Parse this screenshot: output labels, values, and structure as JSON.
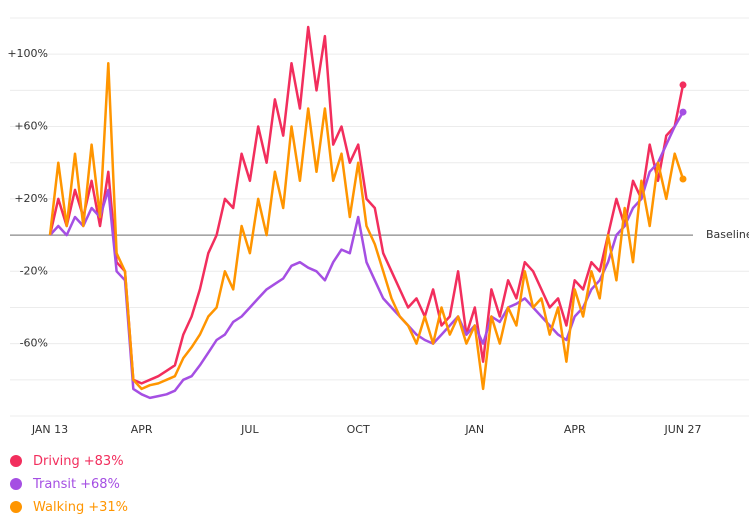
{
  "chart_data": {
    "type": "line",
    "categories": [
      "JAN 13",
      null,
      null,
      null,
      null,
      null,
      null,
      null,
      null,
      null,
      null,
      "APR",
      null,
      null,
      null,
      null,
      null,
      null,
      null,
      null,
      null,
      null,
      null,
      null,
      "JUL",
      null,
      null,
      null,
      null,
      null,
      null,
      null,
      null,
      null,
      null,
      null,
      null,
      "OCT",
      null,
      null,
      null,
      null,
      null,
      null,
      null,
      null,
      null,
      null,
      null,
      null,
      null,
      "JAN",
      null,
      null,
      null,
      null,
      null,
      null,
      null,
      null,
      null,
      null,
      null,
      "APR",
      null,
      null,
      null,
      null,
      null,
      null,
      null,
      null,
      null,
      null,
      null,
      null,
      "JUN 27"
    ],
    "series": [
      {
        "name": "Driving",
        "end_label": "+83%",
        "color": "#f22e5d",
        "values": [
          0,
          20,
          5,
          25,
          10,
          30,
          5,
          35,
          -15,
          -20,
          -80,
          -82,
          -80,
          -78,
          -75,
          -72,
          -55,
          -45,
          -30,
          -10,
          0,
          20,
          15,
          45,
          30,
          60,
          40,
          75,
          55,
          95,
          70,
          115,
          80,
          110,
          50,
          60,
          40,
          50,
          20,
          15,
          -10,
          -20,
          -30,
          -40,
          -35,
          -45,
          -30,
          -50,
          -45,
          -20,
          -55,
          -40,
          -70,
          -30,
          -45,
          -25,
          -35,
          -15,
          -20,
          -30,
          -40,
          -35,
          -50,
          -25,
          -30,
          -15,
          -20,
          0,
          20,
          5,
          30,
          20,
          50,
          30,
          55,
          60,
          83
        ]
      },
      {
        "name": "Transit",
        "end_label": "+68%",
        "color": "#a54fe3",
        "values": [
          0,
          5,
          0,
          10,
          5,
          15,
          10,
          25,
          -20,
          -25,
          -85,
          -88,
          -90,
          -89,
          -88,
          -86,
          -80,
          -78,
          -72,
          -65,
          -58,
          -55,
          -48,
          -45,
          -40,
          -35,
          -30,
          -27,
          -24,
          -17,
          -15,
          -18,
          -20,
          -25,
          -15,
          -8,
          -10,
          10,
          -15,
          -25,
          -35,
          -40,
          -45,
          -50,
          -55,
          -58,
          -60,
          -55,
          -50,
          -45,
          -55,
          -50,
          -60,
          -45,
          -48,
          -40,
          -38,
          -35,
          -40,
          -45,
          -50,
          -55,
          -58,
          -45,
          -40,
          -30,
          -25,
          -15,
          0,
          5,
          15,
          20,
          35,
          40,
          50,
          60,
          68
        ]
      },
      {
        "name": "Walking",
        "end_label": "+31%",
        "color": "#ff9500",
        "values": [
          0,
          40,
          5,
          45,
          5,
          50,
          10,
          95,
          -10,
          -20,
          -80,
          -85,
          -83,
          -82,
          -80,
          -78,
          -68,
          -62,
          -55,
          -45,
          -40,
          -20,
          -30,
          5,
          -10,
          20,
          0,
          35,
          15,
          60,
          30,
          70,
          35,
          70,
          30,
          45,
          10,
          40,
          5,
          -5,
          -20,
          -35,
          -45,
          -50,
          -60,
          -45,
          -60,
          -40,
          -55,
          -45,
          -60,
          -50,
          -85,
          -45,
          -60,
          -40,
          -50,
          -20,
          -40,
          -35,
          -55,
          -40,
          -70,
          -30,
          -45,
          -20,
          -35,
          0,
          -25,
          15,
          -15,
          30,
          5,
          40,
          20,
          45,
          31
        ]
      }
    ],
    "ylim": [
      -100,
      120
    ],
    "yticks": [
      {
        "value": 100,
        "label": "+100%"
      },
      {
        "value": 60,
        "label": "+60%"
      },
      {
        "value": 20,
        "label": "+20%"
      },
      {
        "value": -20,
        "label": "-20%"
      },
      {
        "value": -60,
        "label": "-60%"
      }
    ],
    "minor_yticks": [
      120,
      80,
      40,
      -40,
      -80,
      -100
    ],
    "baseline": {
      "value": 0,
      "label": "Baseline"
    },
    "grid": true
  }
}
